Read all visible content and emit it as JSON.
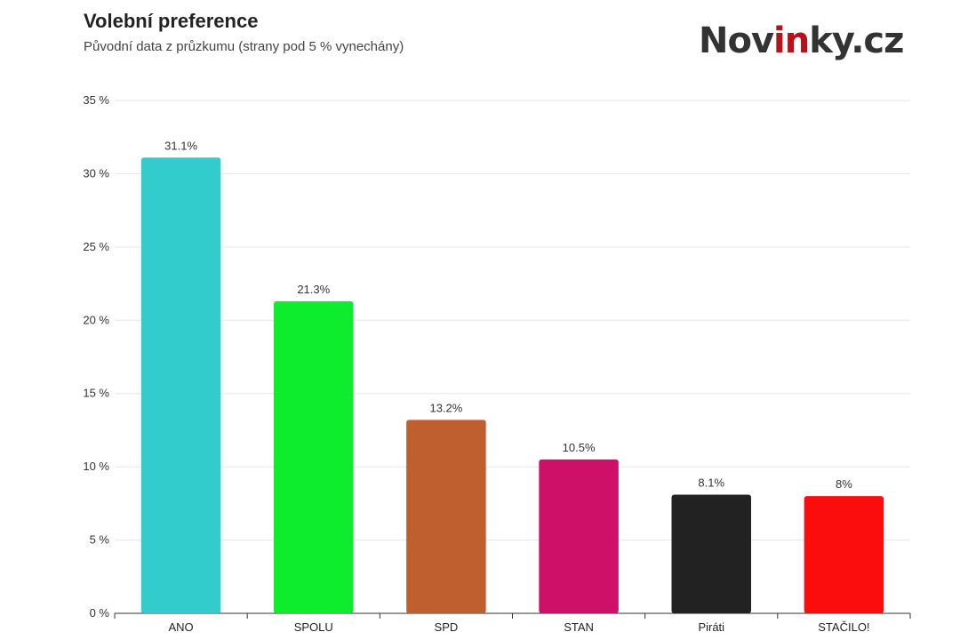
{
  "header": {
    "title": "Volební preference",
    "subtitle": "Původní data z průzkumu (strany pod 5 % vynechány)"
  },
  "logo": {
    "text_before": "Nov",
    "text_accent": "in",
    "text_after": "ky.cz",
    "accent_color": "#b5121b"
  },
  "chart_data": {
    "type": "bar",
    "title": "Volební preference",
    "subtitle": "Původní data z průzkumu (strany pod 5 % vynechány)",
    "categories": [
      "ANO",
      "SPOLU",
      "SPD",
      "STAN",
      "Piráti",
      "STAČILO!"
    ],
    "values": [
      31.1,
      21.3,
      13.2,
      10.5,
      8.1,
      8
    ],
    "data_labels": [
      "31.1%",
      "21.3%",
      "13.2%",
      "10.5%",
      "8.1%",
      "8%"
    ],
    "colors": [
      "#33cccc",
      "#0ded2e",
      "#bf5e2e",
      "#cf1068",
      "#222222",
      "#fc0d0d"
    ],
    "ylim": [
      0,
      35
    ],
    "yticks": [
      0,
      5,
      10,
      15,
      20,
      25,
      30,
      35
    ],
    "ytick_labels": [
      "0 %",
      "5 %",
      "10 %",
      "15 %",
      "20 %",
      "25 %",
      "30 %",
      "35 %"
    ],
    "xlabel": "",
    "ylabel": "",
    "grid": true,
    "legend": "none"
  }
}
